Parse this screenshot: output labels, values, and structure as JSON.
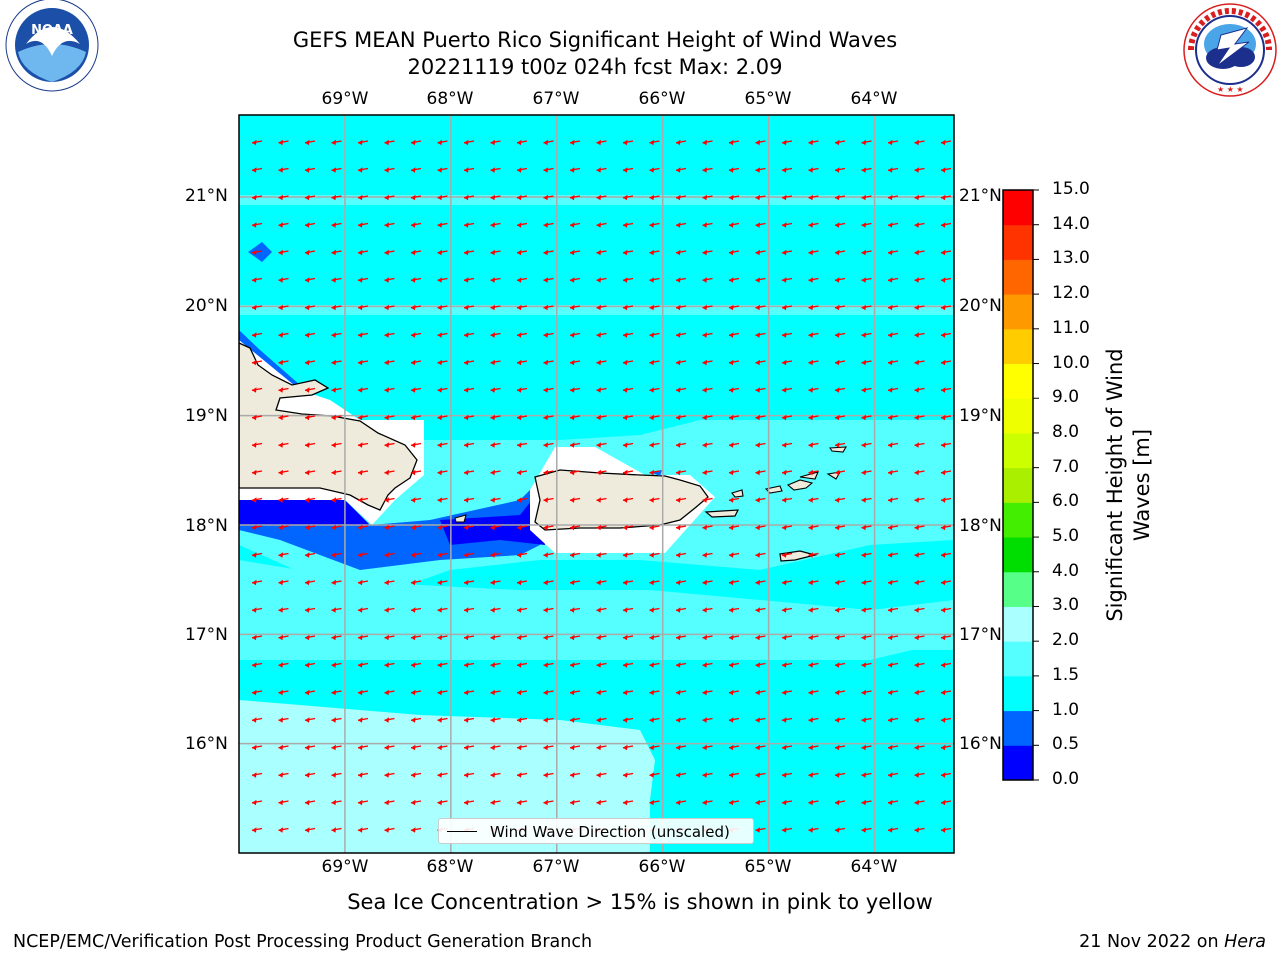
{
  "header": {
    "title_line1": "GEFS MEAN Puerto Rico Significant Height of Wind Waves",
    "title_line2": "20221119 t00z 024h fcst   Max: 2.09"
  },
  "logos": {
    "noaa": {
      "text": "NOAA",
      "ring_text": "NATIONAL OCEANIC AND ATMOSPHERIC ADMINISTRATION · U.S. DEPARTMENT OF COMMERCE"
    },
    "nws": {
      "ring_text": "NATIONAL WEATHER SERVICE"
    }
  },
  "map": {
    "lon_labels": [
      "69°W",
      "68°W",
      "67°W",
      "66°W",
      "65°W",
      "64°W"
    ],
    "lat_labels": [
      "21°N",
      "20°N",
      "19°N",
      "18°N",
      "17°N",
      "16°N"
    ],
    "extent": {
      "lon_min": -70.0,
      "lon_max": -63.25,
      "lat_min": 15.0,
      "lat_max": 21.75
    },
    "gridlines": true,
    "vector_color": "#ff0000",
    "vector_direction": "from east (pointing west), slightly from north",
    "land_color": "#efebdc",
    "sea_ice_color_note": "not present",
    "colors": {
      "h_0_05": "#0000ff",
      "h_05_1": "#0066ff",
      "h_1_15": "#00ffff",
      "h_15_2": "#55ffff",
      "h_2_3": "#aaffff",
      "no_data": "#ffffff"
    }
  },
  "legend": {
    "label": "Wind Wave Direction (unscaled)",
    "placement": "bottom-center"
  },
  "colorbar": {
    "title": "Significant Height of Wind Waves [m]",
    "title_line1": "Significant Height of Wind",
    "title_line2": "Waves [m]",
    "ticks": [
      "15.0",
      "14.0",
      "13.0",
      "12.0",
      "11.0",
      "10.0",
      "9.0",
      "8.0",
      "7.0",
      "6.0",
      "5.0",
      "4.0",
      "3.0",
      "2.0",
      "1.5",
      "1.0",
      "0.5",
      "0.0"
    ],
    "levels": [
      0.0,
      0.5,
      1.0,
      1.5,
      2.0,
      3.0,
      4.0,
      5.0,
      6.0,
      7.0,
      8.0,
      9.0,
      10.0,
      11.0,
      12.0,
      13.0,
      14.0,
      15.0
    ],
    "colors_bottom_to_top": [
      "#0000ff",
      "#0066ff",
      "#00ffff",
      "#55ffff",
      "#aaffff",
      "#55ff88",
      "#00dd00",
      "#44ee00",
      "#aaee00",
      "#ccff00",
      "#eeff00",
      "#ffff00",
      "#ffcc00",
      "#ff9900",
      "#ff6600",
      "#ff3300",
      "#ff0000"
    ]
  },
  "caption": "Sea Ice Concentration > 15% is shown in pink to yellow",
  "footer": {
    "left": "NCEP/EMC/Verification Post Processing Product Generation Branch",
    "right_prefix": "21 Nov 2022 on ",
    "right_machine": "Hera"
  }
}
